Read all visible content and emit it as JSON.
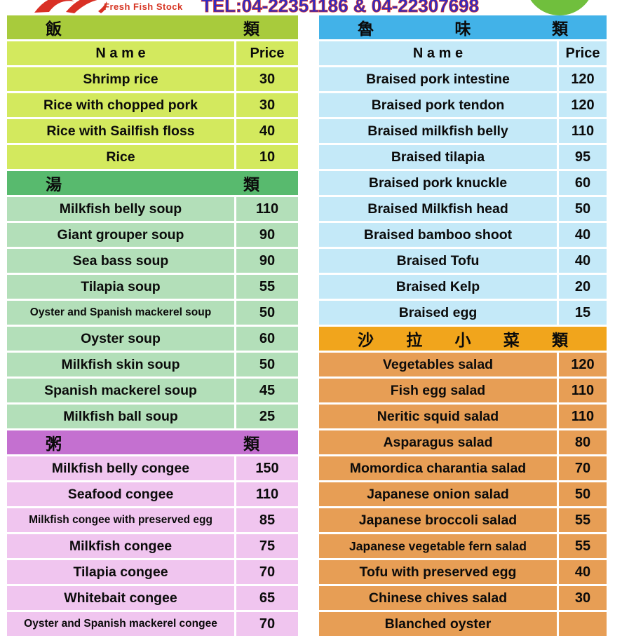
{
  "header": {
    "brand": "Fresh Fish Stock",
    "brand_color": "#d63422",
    "tel": "TEL:04-22351186 & 04-22307698",
    "tel_color": "#2b2bc9",
    "badge_color": "#70bf3d",
    "logo_color": "#d93025"
  },
  "columns": [
    {
      "side": "left",
      "sections": [
        {
          "title_chars": [
            "飯",
            "類"
          ],
          "header_bg": "#a8cb3c",
          "row_bg": "#d3e95e",
          "col_header": {
            "name": "N a m e",
            "price": "Price"
          },
          "rows": [
            {
              "name": "Shrimp rice",
              "price": "30"
            },
            {
              "name": "Rice with chopped pork",
              "price": "30"
            },
            {
              "name": "Rice with Sailfish floss",
              "price": "40"
            },
            {
              "name": "Rice",
              "price": "10"
            }
          ]
        },
        {
          "title_chars": [
            "湯",
            "類"
          ],
          "header_bg": "#58ba6e",
          "row_bg": "#b3dfb9",
          "rows": [
            {
              "name": "Milkfish belly soup",
              "price": "110"
            },
            {
              "name": "Giant grouper soup",
              "price": "90"
            },
            {
              "name": "Sea bass soup",
              "price": "90"
            },
            {
              "name": "Tilapia soup",
              "price": "55"
            },
            {
              "name": "Oyster and Spanish mackerel soup",
              "price": "50"
            },
            {
              "name": "Oyster soup",
              "price": "60"
            },
            {
              "name": "Milkfish skin soup",
              "price": "50"
            },
            {
              "name": "Spanish mackerel soup",
              "price": "45"
            },
            {
              "name": "Milkfish ball soup",
              "price": "25"
            }
          ]
        },
        {
          "title_chars": [
            "粥",
            "類"
          ],
          "header_bg": "#c470d0",
          "row_bg": "#f0c5ef",
          "rows": [
            {
              "name": "Milkfish belly congee",
              "price": "150"
            },
            {
              "name": "Seafood congee",
              "price": "110"
            },
            {
              "name": "Milkfish congee with preserved egg",
              "price": "85"
            },
            {
              "name": "Milkfish congee",
              "price": "75"
            },
            {
              "name": "Tilapia congee",
              "price": "70"
            },
            {
              "name": "Whitebait congee",
              "price": "65"
            },
            {
              "name": "Oyster and Spanish mackerel congee",
              "price": "70"
            }
          ]
        }
      ]
    },
    {
      "side": "right",
      "sections": [
        {
          "title_chars": [
            "魯",
            "味",
            "類"
          ],
          "header_bg": "#42b2e8",
          "row_bg": "#c4e9f8",
          "col_header": {
            "name": "N a m e",
            "price": "Price"
          },
          "rows": [
            {
              "name": "Braised pork intestine",
              "price": "120"
            },
            {
              "name": "Braised pork tendon",
              "price": "120"
            },
            {
              "name": "Braised milkfish belly",
              "price": "110"
            },
            {
              "name": "Braised tilapia",
              "price": "95"
            },
            {
              "name": "Braised pork knuckle",
              "price": "60"
            },
            {
              "name": "Braised Milkfish head",
              "price": "50"
            },
            {
              "name": "Braised bamboo shoot",
              "price": "40"
            },
            {
              "name": "Braised Tofu",
              "price": "40"
            },
            {
              "name": "Braised Kelp",
              "price": "20"
            },
            {
              "name": "Braised egg",
              "price": "15"
            }
          ]
        },
        {
          "title_chars": [
            "沙",
            "拉",
            "小",
            "菜",
            "類"
          ],
          "header_bg": "#f1a51c",
          "row_bg": "#e79e55",
          "rows": [
            {
              "name": "Vegetables salad",
              "price": "120"
            },
            {
              "name": "Fish egg salad",
              "price": "110"
            },
            {
              "name": "Neritic squid salad",
              "price": "110"
            },
            {
              "name": "Asparagus salad",
              "price": "80"
            },
            {
              "name": "Momordica charantia salad",
              "price": "70"
            },
            {
              "name": "Japanese onion salad",
              "price": "50"
            },
            {
              "name": "Japanese broccoli salad",
              "price": "55"
            },
            {
              "name": "Japanese vegetable fern salad",
              "price": "55"
            },
            {
              "name": "Tofu with preserved egg",
              "price": "40"
            },
            {
              "name": "Chinese chives salad",
              "price": "30"
            },
            {
              "name": "Blanched oyster",
              "price": ""
            }
          ]
        }
      ]
    }
  ]
}
